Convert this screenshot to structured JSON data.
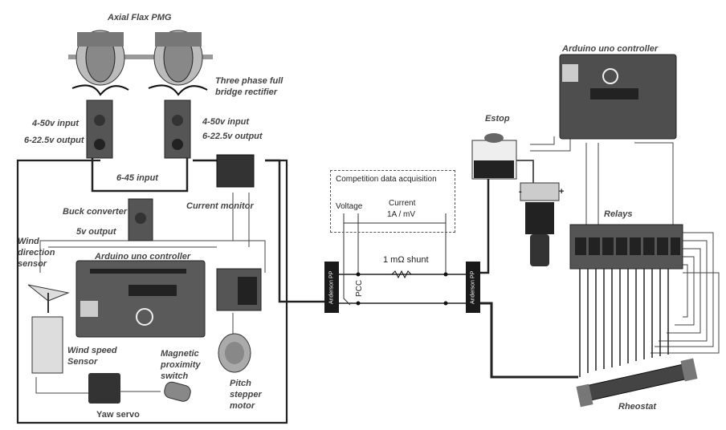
{
  "labels": {
    "axial_flax_pmg": "Axial Flax PMG",
    "three_phase_rectifier": "Three phase full\nbridge rectifier",
    "input_left": "4-50v input",
    "output_left": "6-22.5v output",
    "input_right": "4-50v input",
    "output_right": "6-22.5v output",
    "input_645": "6-45 input",
    "buck_converter": "Buck converter",
    "five_v_output": "5v output",
    "current_monitor": "Current monitor",
    "wind_direction_sensor": "Wind\ndirection\nsensor",
    "arduino_left": "Arduino uno controller",
    "wind_speed_sensor": "Wind speed\nSensor",
    "magnetic_proximity_switch": "Magnetic\nproximity\nswitch",
    "pitch_stepper_motor": "Pitch\nstepper\nmotor",
    "yaw_servo": "Yaw servo",
    "competition_daq": "Competition data acquisition",
    "voltage": "Voltage",
    "current": "Current",
    "current_scale": "1A / mV",
    "shunt": "1 mΩ shunt",
    "pcc": "PCC",
    "anderson_left": "Anderson PP",
    "anderson_right": "Anderson PP",
    "estop": "Estop",
    "arduino_right": "Arduino uno controller",
    "minus": "-",
    "plus": "+",
    "relays": "Relays",
    "rheostat": "Rheostat"
  },
  "colors": {
    "wire": "#333333",
    "wire_heavy": "#111111",
    "board": "#5d5d5d",
    "label": "#444444"
  }
}
